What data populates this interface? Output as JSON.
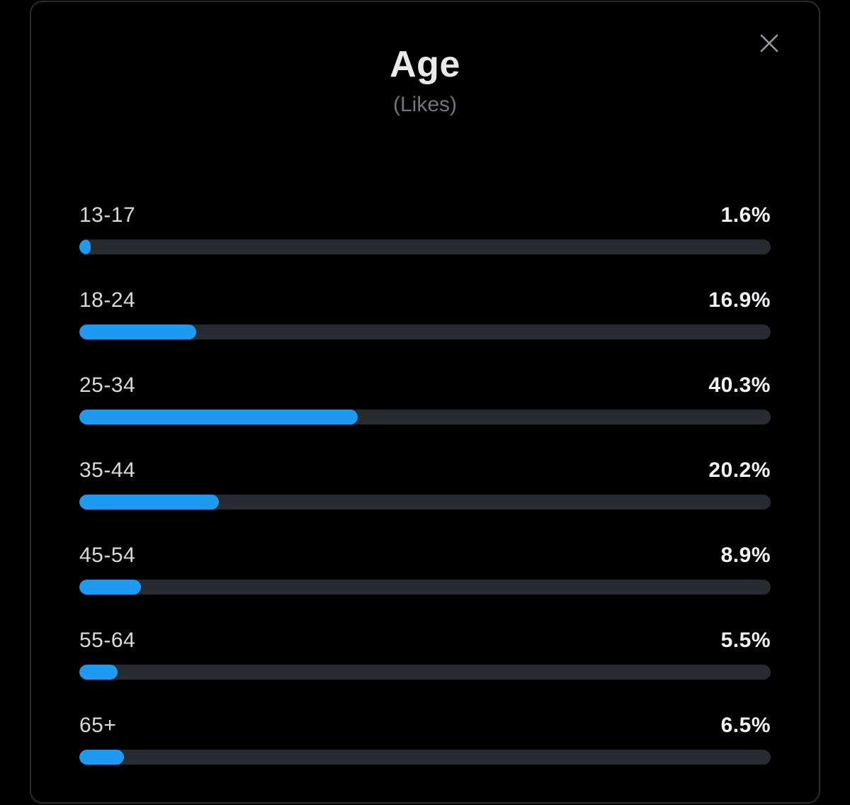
{
  "modal": {
    "title": "Age",
    "subtitle": "(Likes)",
    "close_icon": "x-close-icon"
  },
  "rows": [
    {
      "label": "13-17",
      "value": "1.6%"
    },
    {
      "label": "18-24",
      "value": "16.9%"
    },
    {
      "label": "25-34",
      "value": "40.3%"
    },
    {
      "label": "35-44",
      "value": "20.2%"
    },
    {
      "label": "45-54",
      "value": "8.9%"
    },
    {
      "label": "55-64",
      "value": "5.5%"
    },
    {
      "label": "65+",
      "value": "6.5%"
    }
  ],
  "chart_data": {
    "type": "bar",
    "orientation": "horizontal",
    "title": "Age",
    "subtitle": "(Likes)",
    "categories": [
      "13-17",
      "18-24",
      "25-34",
      "35-44",
      "45-54",
      "55-64",
      "65+"
    ],
    "values": [
      1.6,
      16.9,
      40.3,
      20.2,
      8.9,
      5.5,
      6.5
    ],
    "unit": "%",
    "xlim": [
      0,
      100
    ],
    "grid": false,
    "legend": false
  },
  "colors": {
    "bar_fill": "#1d9bf0",
    "bar_track": "#282c31",
    "background": "#000000",
    "panel_border": "#2a2c2e",
    "title_text": "#e9eaeb",
    "subtitle_text": "#71767b",
    "value_text": "#f0f2f3",
    "label_text": "#d8dadc",
    "close_icon": "#969a9e"
  }
}
